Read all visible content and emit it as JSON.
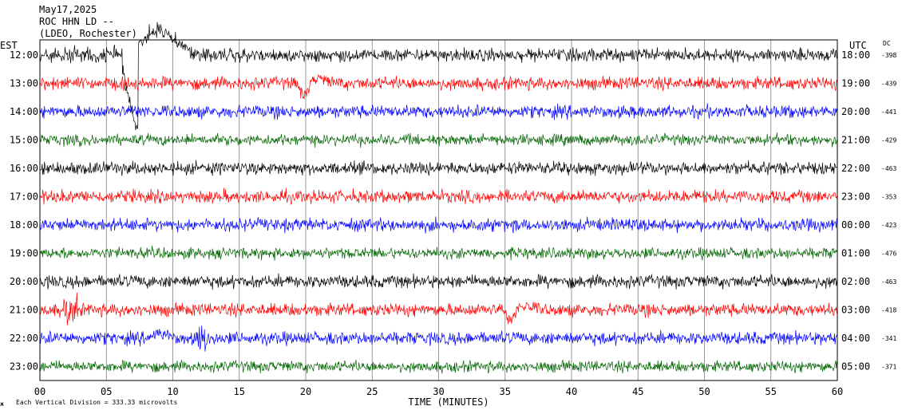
{
  "header": {
    "date": "May17,2025",
    "station": "ROC HHN LD --",
    "location": "(LDEO, Rochester)"
  },
  "labels": {
    "left_zone": "EST",
    "right_zone": "UTC",
    "dc_label": "DC",
    "x_axis_title": "TIME (MINUTES)",
    "footer_note": "Each Vertical Division =  333.33 microvolts"
  },
  "colors": {
    "trace_cycle": [
      "#000000",
      "#ff0000",
      "#0000ff",
      "#006400"
    ],
    "grid": "#808080",
    "frame": "#000000"
  },
  "chart_data": {
    "type": "line",
    "xlabel": "TIME (MINUTES)",
    "xlim": [
      0,
      60
    ],
    "x_ticks": [
      "00",
      "05",
      "10",
      "15",
      "20",
      "25",
      "30",
      "35",
      "40",
      "45",
      "50",
      "55",
      "60"
    ],
    "rows": [
      {
        "est": "12:00",
        "utc": "18:00",
        "dc": "-398"
      },
      {
        "est": "13:00",
        "utc": "19:00",
        "dc": "-439"
      },
      {
        "est": "14:00",
        "utc": "20:00",
        "dc": "-441"
      },
      {
        "est": "15:00",
        "utc": "21:00",
        "dc": "-429"
      },
      {
        "est": "16:00",
        "utc": "22:00",
        "dc": "-463"
      },
      {
        "est": "17:00",
        "utc": "23:00",
        "dc": "-353"
      },
      {
        "est": "18:00",
        "utc": "00:00",
        "dc": "-423"
      },
      {
        "est": "19:00",
        "utc": "01:00",
        "dc": "-476"
      },
      {
        "est": "20:00",
        "utc": "02:00",
        "dc": "-463"
      },
      {
        "est": "21:00",
        "utc": "03:00",
        "dc": "-418"
      },
      {
        "est": "22:00",
        "utc": "04:00",
        "dc": "-341"
      },
      {
        "est": "23:00",
        "utc": "05:00",
        "dc": "-371"
      }
    ],
    "events": [
      {
        "row": 0,
        "minute": 6.5,
        "kind": "large-excursion"
      },
      {
        "row": 0,
        "minute": 8.0,
        "kind": "large-excursion"
      },
      {
        "row": 1,
        "minute": 20.0,
        "kind": "dip"
      },
      {
        "row": 9,
        "minute": 2.3,
        "kind": "spike"
      },
      {
        "row": 9,
        "minute": 35.5,
        "kind": "dip"
      },
      {
        "row": 10,
        "minute": 9.0,
        "kind": "bump"
      },
      {
        "row": 10,
        "minute": 12.3,
        "kind": "spike"
      }
    ]
  }
}
